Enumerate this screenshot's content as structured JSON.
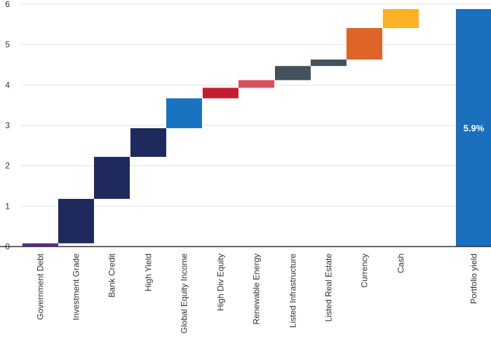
{
  "chart_data": {
    "type": "bar",
    "subtype": "waterfall",
    "title": "",
    "xlabel": "",
    "ylabel": "",
    "ylim": [
      0,
      6
    ],
    "yticks": [
      0,
      1,
      2,
      3,
      4,
      5,
      6
    ],
    "grid": true,
    "categories": [
      "Government Debt",
      "Investment Grade",
      "Bank Credit",
      "High Yield",
      "Global Equity Income",
      "High Div Equity",
      "Renewable Energy",
      "Listed Infrastructure",
      "Listed Real Estate",
      "Currency",
      "Cash",
      "Portfolio yield"
    ],
    "bars": [
      {
        "start": 0.0,
        "end": 0.08,
        "color": "#5b2c83"
      },
      {
        "start": 0.08,
        "end": 1.18,
        "color": "#1f2a5c"
      },
      {
        "start": 1.18,
        "end": 2.22,
        "color": "#1f2a5c"
      },
      {
        "start": 2.22,
        "end": 2.93,
        "color": "#1f2a5c"
      },
      {
        "start": 2.93,
        "end": 3.67,
        "color": "#1874c0"
      },
      {
        "start": 3.67,
        "end": 3.93,
        "color": "#c41e2e"
      },
      {
        "start": 3.93,
        "end": 4.12,
        "color": "#d9505e"
      },
      {
        "start": 4.12,
        "end": 4.47,
        "color": "#44525c"
      },
      {
        "start": 4.47,
        "end": 4.63,
        "color": "#44525c"
      },
      {
        "start": 4.63,
        "end": 5.41,
        "color": "#dc6527"
      },
      {
        "start": 5.41,
        "end": 5.88,
        "color": "#fbb126"
      },
      {
        "start": 0.0,
        "end": 5.88,
        "color": "#1a6fbd",
        "label": "5.9%"
      }
    ]
  }
}
